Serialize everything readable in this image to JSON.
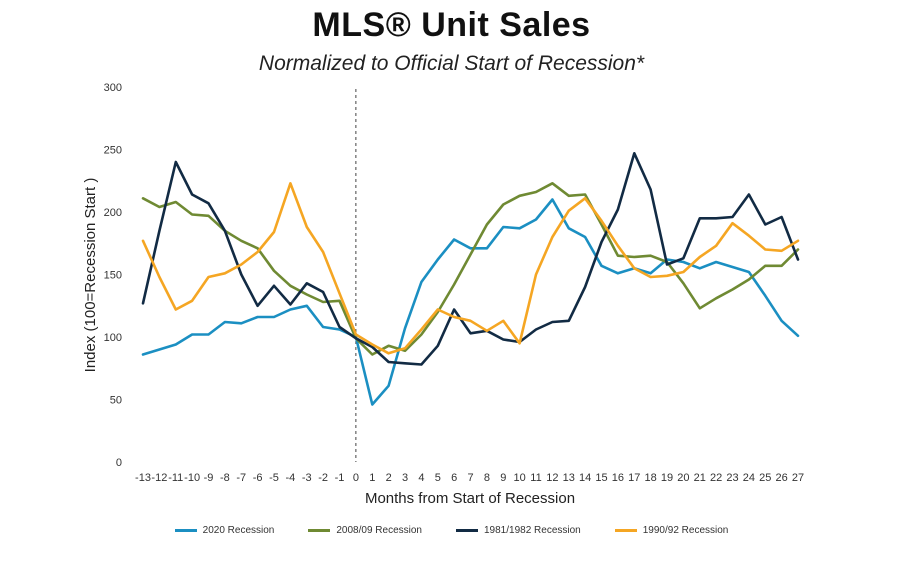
{
  "title": "MLS® Unit Sales",
  "subtitle": "Normalized to Official Start of Recession*",
  "chart_data": {
    "type": "line",
    "title": "MLS® Unit Sales",
    "subtitle": "Normalized to Official Start of Recession*",
    "xlabel": "Months from Start of Recession",
    "ylabel": "Index (100=Recession Start )",
    "ylim": [
      0,
      300
    ],
    "yticks": [
      0,
      50,
      100,
      150,
      200,
      250,
      300
    ],
    "x": [
      -13,
      -12,
      -11,
      -10,
      -9,
      -8,
      -7,
      -6,
      -5,
      -4,
      -3,
      -2,
      -1,
      0,
      1,
      2,
      3,
      4,
      5,
      6,
      7,
      8,
      9,
      10,
      11,
      12,
      13,
      14,
      15,
      16,
      17,
      18,
      19,
      20,
      21,
      22,
      23,
      24,
      25,
      26,
      27
    ],
    "vline_x": 0,
    "grid": false,
    "legend_position": "bottom",
    "series": [
      {
        "name": "2020 Recession",
        "color": "#1b8fc2",
        "values": [
          86,
          90,
          94,
          102,
          102,
          112,
          111,
          116,
          116,
          122,
          125,
          108,
          106,
          100,
          46,
          61,
          107,
          144,
          162,
          178,
          171,
          171,
          188,
          187,
          194,
          210,
          187,
          180,
          157,
          151,
          155,
          151,
          162,
          160,
          155,
          160,
          156,
          152,
          133,
          113,
          101
        ]
      },
      {
        "name": "2008/09 Recession",
        "color": "#6f8a33",
        "values": [
          211,
          204,
          208,
          198,
          197,
          185,
          177,
          171,
          153,
          141,
          134,
          128,
          129,
          99,
          86,
          93,
          89,
          102,
          120,
          142,
          166,
          190,
          206,
          213,
          216,
          223,
          213,
          214,
          190,
          165,
          164,
          165,
          160,
          143,
          123,
          131,
          138,
          146,
          157,
          157,
          170
        ]
      },
      {
        "name": "1981/1982 Recession",
        "color": "#122b44",
        "values": [
          127,
          185,
          240,
          214,
          207,
          185,
          150,
          125,
          141,
          126,
          143,
          136,
          108,
          99,
          92,
          80,
          79,
          78,
          93,
          122,
          103,
          105,
          98,
          96,
          106,
          112,
          113,
          140,
          176,
          202,
          247,
          218,
          158,
          163,
          195,
          195,
          196,
          214,
          190,
          196,
          162
        ]
      },
      {
        "name": "1990/92 Recession",
        "color": "#f5a623",
        "values": [
          177,
          148,
          122,
          129,
          148,
          151,
          158,
          168,
          184,
          223,
          188,
          168,
          135,
          102,
          94,
          87,
          91,
          106,
          122,
          116,
          113,
          105,
          113,
          95,
          150,
          180,
          201,
          211,
          193,
          173,
          155,
          148,
          149,
          152,
          164,
          173,
          191,
          181,
          170,
          169,
          177
        ]
      }
    ]
  }
}
